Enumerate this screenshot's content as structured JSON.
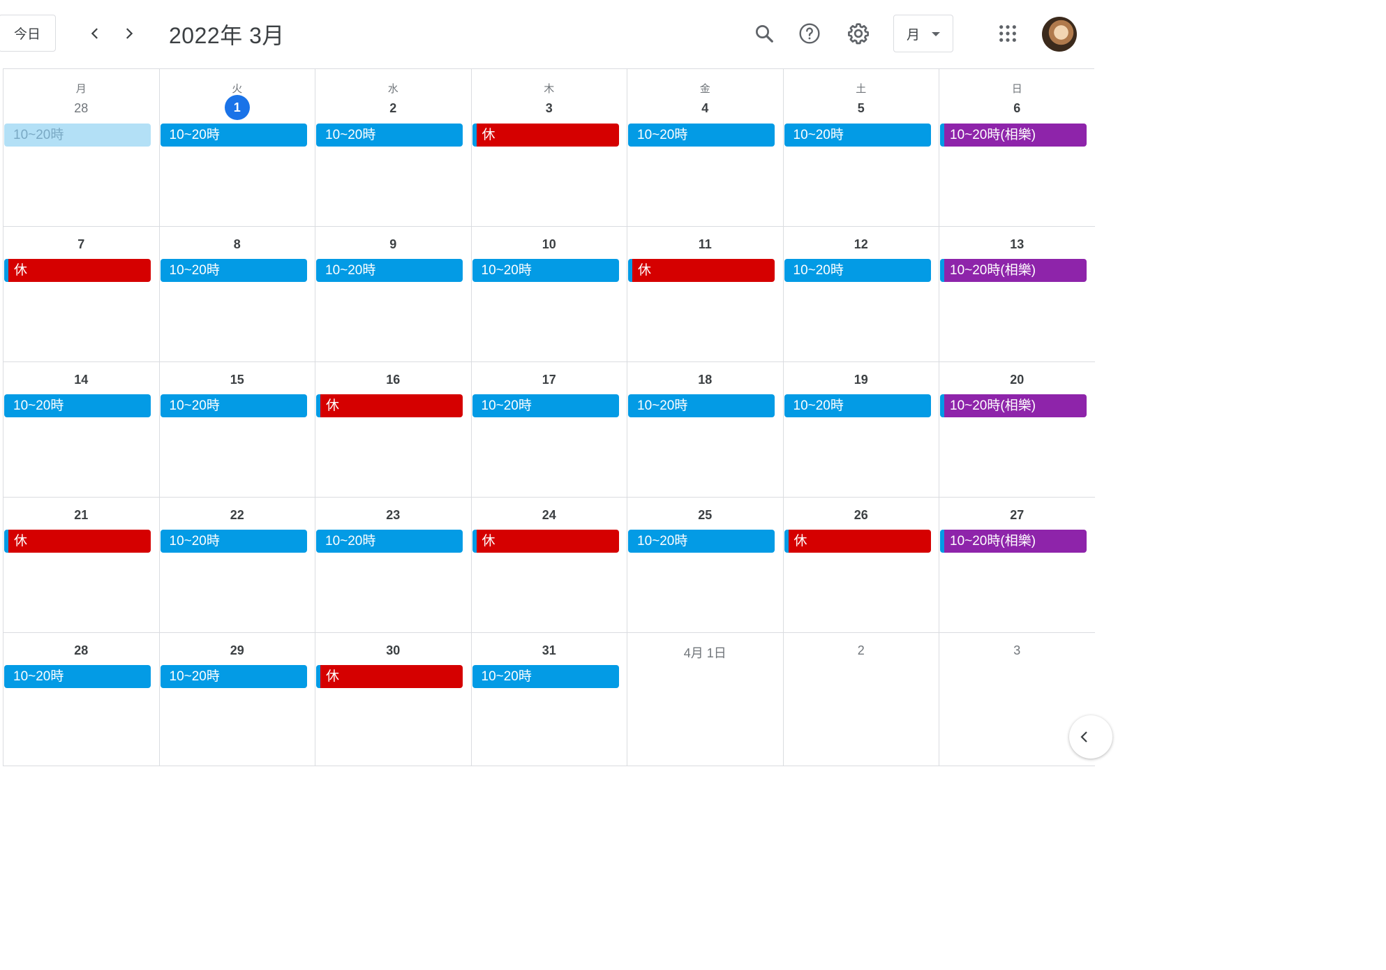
{
  "header": {
    "today_label": "今日",
    "title": "2022年 3月",
    "view_label": "月",
    "icons": [
      "chevron-left-icon",
      "chevron-right-icon",
      "search-icon",
      "help-icon",
      "gear-icon",
      "apps-icon"
    ]
  },
  "colors": {
    "work": "#039be5",
    "off": "#d50000",
    "special": "#8e24aa",
    "today": "#1a73e8"
  },
  "weekdays": [
    "月",
    "火",
    "水",
    "木",
    "金",
    "土",
    "日"
  ],
  "weeks": [
    [
      {
        "day": "28",
        "muted": true,
        "event": {
          "label": "10~20時",
          "type": "past"
        }
      },
      {
        "day": "1",
        "today": true,
        "event": {
          "label": "10~20時",
          "type": "work"
        }
      },
      {
        "day": "2",
        "event": {
          "label": "10~20時",
          "type": "work"
        }
      },
      {
        "day": "3",
        "event": {
          "label": "休",
          "type": "off"
        }
      },
      {
        "day": "4",
        "event": {
          "label": "10~20時",
          "type": "work"
        }
      },
      {
        "day": "5",
        "event": {
          "label": "10~20時",
          "type": "work"
        }
      },
      {
        "day": "6",
        "event": {
          "label": "10~20時(相樂)",
          "type": "special"
        }
      }
    ],
    [
      {
        "day": "7",
        "event": {
          "label": "休",
          "type": "off"
        }
      },
      {
        "day": "8",
        "event": {
          "label": "10~20時",
          "type": "work"
        }
      },
      {
        "day": "9",
        "event": {
          "label": "10~20時",
          "type": "work"
        }
      },
      {
        "day": "10",
        "event": {
          "label": "10~20時",
          "type": "work"
        }
      },
      {
        "day": "11",
        "event": {
          "label": "休",
          "type": "off"
        }
      },
      {
        "day": "12",
        "event": {
          "label": "10~20時",
          "type": "work"
        }
      },
      {
        "day": "13",
        "event": {
          "label": "10~20時(相樂)",
          "type": "special"
        }
      }
    ],
    [
      {
        "day": "14",
        "event": {
          "label": "10~20時",
          "type": "work"
        }
      },
      {
        "day": "15",
        "event": {
          "label": "10~20時",
          "type": "work"
        }
      },
      {
        "day": "16",
        "event": {
          "label": "休",
          "type": "off"
        }
      },
      {
        "day": "17",
        "event": {
          "label": "10~20時",
          "type": "work"
        }
      },
      {
        "day": "18",
        "event": {
          "label": "10~20時",
          "type": "work"
        }
      },
      {
        "day": "19",
        "event": {
          "label": "10~20時",
          "type": "work"
        }
      },
      {
        "day": "20",
        "event": {
          "label": "10~20時(相樂)",
          "type": "special"
        }
      }
    ],
    [
      {
        "day": "21",
        "event": {
          "label": "休",
          "type": "off"
        }
      },
      {
        "day": "22",
        "event": {
          "label": "10~20時",
          "type": "work"
        }
      },
      {
        "day": "23",
        "event": {
          "label": "10~20時",
          "type": "work"
        }
      },
      {
        "day": "24",
        "event": {
          "label": "休",
          "type": "off"
        }
      },
      {
        "day": "25",
        "event": {
          "label": "10~20時",
          "type": "work"
        }
      },
      {
        "day": "26",
        "event": {
          "label": "休",
          "type": "off"
        }
      },
      {
        "day": "27",
        "event": {
          "label": "10~20時(相樂)",
          "type": "special"
        }
      }
    ],
    [
      {
        "day": "28",
        "event": {
          "label": "10~20時",
          "type": "work"
        }
      },
      {
        "day": "29",
        "event": {
          "label": "10~20時",
          "type": "work"
        }
      },
      {
        "day": "30",
        "event": {
          "label": "休",
          "type": "off"
        }
      },
      {
        "day": "31",
        "event": {
          "label": "10~20時",
          "type": "work"
        }
      },
      {
        "day": "4月 1日",
        "muted": true
      },
      {
        "day": "2",
        "muted": true
      },
      {
        "day": "3",
        "muted": true
      }
    ]
  ]
}
